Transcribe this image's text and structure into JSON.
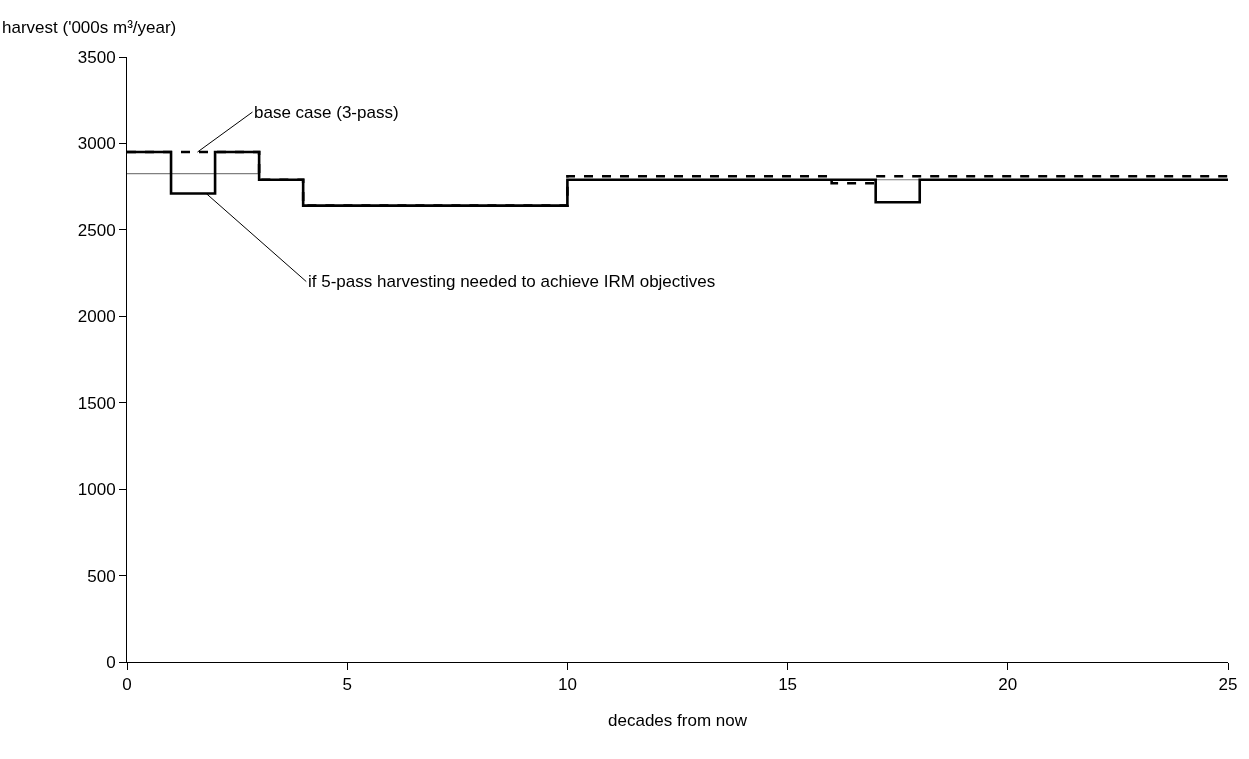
{
  "chart_data": {
    "type": "step",
    "xlabel": "decades from now",
    "ylabel": "harvest ('000s m³/year)",
    "xlim": [
      0,
      25
    ],
    "xticks": [
      0,
      5,
      10,
      15,
      20,
      25
    ],
    "ylim": [
      0,
      3500
    ],
    "yticks": [
      0,
      500,
      1000,
      1500,
      2000,
      2500,
      3000,
      3500
    ],
    "marker": "none",
    "series": [
      {
        "color": "#808080",
        "line_style": "solid",
        "x": [
          0,
          3,
          4,
          10,
          25
        ],
        "values": [
          2825,
          2790,
          2640,
          2790,
          2790
        ]
      },
      {
        "color": "#000000",
        "line_style": "solid",
        "x": [
          0,
          1,
          2,
          3,
          4,
          10,
          17,
          18,
          25
        ],
        "values": [
          2950,
          2710,
          2950,
          2790,
          2640,
          2790,
          2660,
          2790,
          2790
        ]
      },
      {
        "color": "#000000",
        "line_style": "dashed",
        "x": [
          0,
          3,
          4,
          10,
          16,
          17,
          25
        ],
        "values": [
          2950,
          2790,
          2640,
          2810,
          2770,
          2810,
          2810
        ]
      }
    ],
    "annotations": [
      {
        "text": "base case (3-pass)",
        "x": 1.6,
        "y": 2950
      },
      {
        "text": "if 5-pass harvesting needed to achieve IRM objectives",
        "x": 1.8,
        "y": 2710
      }
    ]
  }
}
